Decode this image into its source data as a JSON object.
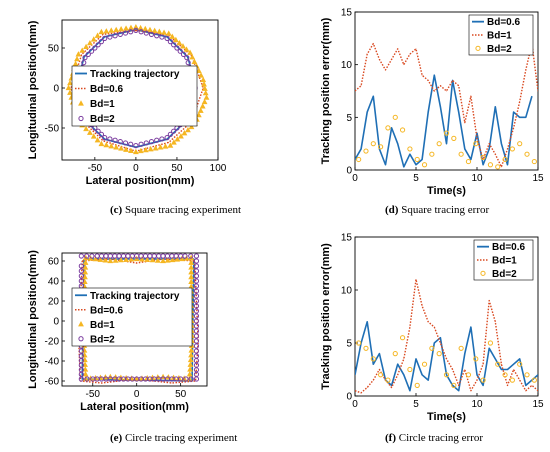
{
  "colors": {
    "blue": "#1f6fb5",
    "red": "#d9481f",
    "yellow": "#f5b622",
    "purple": "#7a3b9e"
  },
  "chart_data": [
    {
      "id": "c",
      "type": "line",
      "caption_tag": "(c)",
      "caption_text": "Square tracing experiment",
      "xlabel": "Lateral position(mm)",
      "ylabel": "Longitudinal position(mm)",
      "xlim": [
        -90,
        100
      ],
      "ylim": [
        -90,
        85
      ],
      "xticks": [
        -50,
        0,
        50,
        100
      ],
      "yticks": [
        -50,
        0,
        50
      ],
      "legend_position": "center",
      "series": [
        {
          "name": "Tracking trajectory",
          "style": "line",
          "color": "#1f6fb5",
          "x": [
            0,
            38,
            63,
            74,
            63,
            38,
            0,
            -38,
            -63,
            -73,
            -63,
            -38,
            0
          ],
          "y": [
            73,
            64,
            39,
            0,
            -39,
            -64,
            -74,
            -64,
            -39,
            0,
            39,
            64,
            73
          ]
        },
        {
          "name": "Bd=0.6",
          "style": "dotted",
          "color": "#d9481f",
          "x": [
            0,
            40,
            68,
            82,
            68,
            40,
            0,
            -40,
            -66,
            -79,
            -66,
            -40,
            0
          ],
          "y": [
            72,
            66,
            40,
            0,
            -42,
            -68,
            -79,
            -66,
            -40,
            0,
            42,
            67,
            72
          ]
        },
        {
          "name": "Bd=1",
          "style": "triangle",
          "color": "#f5b622",
          "x": [
            0,
            40,
            66,
            82,
            86,
            72,
            42,
            0,
            -42,
            -70,
            -82,
            -70,
            -42,
            0
          ],
          "y": [
            76,
            68,
            44,
            10,
            -12,
            -45,
            -72,
            -80,
            -70,
            -42,
            0,
            42,
            70,
            76
          ]
        },
        {
          "name": "Bd=2",
          "style": "circle",
          "color": "#7a3b9e",
          "x": [
            0,
            38,
            62,
            72,
            62,
            38,
            0,
            -38,
            -62,
            -71,
            -62,
            -38,
            0
          ],
          "y": [
            72,
            62,
            38,
            0,
            -38,
            -62,
            -72,
            -62,
            -38,
            0,
            38,
            62,
            72
          ]
        }
      ]
    },
    {
      "id": "d",
      "type": "line",
      "caption_tag": "(d)",
      "caption_text": "Square tracing error",
      "xlabel": "Time(s)",
      "ylabel": "Tracking position error(mm)",
      "xlim": [
        0,
        15
      ],
      "ylim": [
        0,
        15
      ],
      "xticks": [
        0,
        5,
        10,
        15
      ],
      "yticks": [
        0,
        5,
        10,
        15
      ],
      "legend_position": "top-right",
      "series": [
        {
          "name": "Bd=0.6",
          "style": "line",
          "color": "#1f6fb5",
          "x": [
            0,
            0.5,
            1,
            1.5,
            2,
            2.5,
            3,
            3.5,
            4,
            4.5,
            5,
            5.5,
            6,
            6.5,
            7,
            7.5,
            8,
            8.5,
            9,
            9.5,
            10,
            10.5,
            11,
            11.5,
            12,
            12.5,
            13,
            13.5,
            14,
            14.5
          ],
          "y": [
            1.0,
            2.0,
            5.5,
            7.0,
            2.0,
            0.5,
            4.0,
            2.5,
            0.3,
            1.5,
            0.5,
            1.0,
            5.5,
            9.0,
            6.0,
            2.5,
            8.5,
            5.5,
            2.0,
            1.0,
            3.5,
            0.5,
            2.0,
            6.0,
            2.5,
            0.5,
            5.5,
            5.0,
            5.0,
            7.0
          ]
        },
        {
          "name": "Bd=1",
          "style": "dotted",
          "color": "#d9481f",
          "x": [
            0,
            0.5,
            1,
            1.5,
            2,
            2.5,
            3,
            3.5,
            4,
            4.5,
            5,
            5.5,
            6,
            6.5,
            7,
            7.5,
            8,
            8.5,
            9,
            9.5,
            10,
            10.5,
            11,
            11.5,
            12,
            12.5,
            13,
            13.5,
            14,
            14.5,
            15
          ],
          "y": [
            7.5,
            8.0,
            11.0,
            12.0,
            10.5,
            9.5,
            10.5,
            11.5,
            10.0,
            11.0,
            11.5,
            9.0,
            8.5,
            7.5,
            8.0,
            7.5,
            8.5,
            8.0,
            4.5,
            7.0,
            3.0,
            1.0,
            2.5,
            1.5,
            0.3,
            2.0,
            4.0,
            6.5,
            9.5,
            12.0,
            7.5
          ]
        },
        {
          "name": "Bd=2",
          "style": "circle",
          "color": "#f5b622",
          "x": [
            0.3,
            0.9,
            1.5,
            2.1,
            2.7,
            3.3,
            3.9,
            4.5,
            5.1,
            5.7,
            6.3,
            6.9,
            7.5,
            8.1,
            8.7,
            9.3,
            9.9,
            10.5,
            11.1,
            11.7,
            12.3,
            12.9,
            13.5,
            14.1,
            14.7
          ],
          "y": [
            1.0,
            1.8,
            2.5,
            2.2,
            4.0,
            5.0,
            3.8,
            2.0,
            1.0,
            0.5,
            1.5,
            2.5,
            3.5,
            3.0,
            1.5,
            0.8,
            2.5,
            1.2,
            0.5,
            0.3,
            1.0,
            2.0,
            2.5,
            1.5,
            0.8
          ]
        }
      ]
    },
    {
      "id": "e",
      "type": "line",
      "caption_tag": "(e)",
      "caption_text": "Circle tracing experiment",
      "xlabel": "Lateral position(mm)",
      "ylabel": "Longitudinal position(mm)",
      "xlim": [
        -85,
        80
      ],
      "ylim": [
        -65,
        68
      ],
      "xticks": [
        -50,
        0,
        50
      ],
      "yticks": [
        -60,
        -40,
        -20,
        0,
        20,
        40,
        60
      ],
      "legend_position": "center",
      "series": [
        {
          "name": "Tracking trajectory",
          "style": "line",
          "color": "#1f6fb5",
          "x": [
            -60,
            65,
            63,
            -62,
            -60
          ],
          "y": [
            62,
            62,
            -60,
            -58,
            62
          ]
        },
        {
          "name": "Bd=0.6",
          "style": "dotted",
          "color": "#d9481f",
          "x": [
            -62,
            -30,
            0,
            30,
            66,
            68,
            70,
            67,
            40,
            0,
            -40,
            -64,
            -66,
            -64,
            -62
          ],
          "y": [
            60,
            62,
            58,
            62,
            60,
            20,
            -20,
            -60,
            -62,
            -58,
            -62,
            -60,
            -20,
            20,
            60
          ]
        },
        {
          "name": "Bd=1",
          "style": "triangle",
          "color": "#f5b622",
          "x": [
            -58,
            -30,
            0,
            30,
            62,
            62,
            63,
            60,
            30,
            0,
            -30,
            -58,
            -60,
            -60,
            -58
          ],
          "y": [
            63,
            60,
            62,
            60,
            63,
            20,
            -20,
            -58,
            -56,
            -58,
            -56,
            -58,
            -20,
            20,
            63
          ]
        },
        {
          "name": "Bd=2",
          "style": "circle",
          "color": "#7a3b9e",
          "x": [
            -63,
            -45,
            -25,
            -5,
            15,
            35,
            55,
            68,
            68,
            68,
            68,
            68,
            68,
            50,
            30,
            10,
            -10,
            -30,
            -50,
            -63,
            -63,
            -63,
            -63,
            -63,
            -63
          ],
          "y": [
            65,
            65,
            65,
            65,
            65,
            65,
            65,
            65,
            40,
            15,
            -10,
            -35,
            -58,
            -58,
            -58,
            -58,
            -58,
            -58,
            -58,
            -58,
            -35,
            -10,
            15,
            40,
            60
          ]
        }
      ]
    },
    {
      "id": "f",
      "type": "line",
      "caption_tag": "(f)",
      "caption_text": "Circle tracing error",
      "xlabel": "Time(s)",
      "ylabel": "Tracking position error(mm)",
      "xlim": [
        0,
        15
      ],
      "ylim": [
        0,
        15
      ],
      "xticks": [
        0,
        5,
        10,
        15
      ],
      "yticks": [
        0,
        5,
        10,
        15
      ],
      "legend_position": "top-right",
      "series": [
        {
          "name": "Bd=0.6",
          "style": "line",
          "color": "#1f6fb5",
          "x": [
            0,
            0.5,
            1,
            1.5,
            2,
            2.5,
            3,
            3.5,
            4,
            4.5,
            5,
            5.5,
            6,
            6.5,
            7,
            7.5,
            8,
            8.5,
            9,
            9.5,
            10,
            10.5,
            11,
            11.5,
            12,
            12.5,
            13,
            13.5,
            14,
            14.5,
            15
          ],
          "y": [
            2.0,
            5.0,
            7.0,
            3.0,
            4.0,
            1.5,
            1.0,
            3.0,
            2.0,
            0.5,
            3.5,
            2.0,
            1.5,
            5.0,
            5.5,
            2.0,
            1.0,
            0.5,
            4.0,
            6.5,
            2.0,
            1.0,
            4.5,
            3.5,
            2.5,
            2.5,
            3.0,
            3.5,
            1.0,
            1.5,
            2.0
          ]
        },
        {
          "name": "Bd=1",
          "style": "dotted",
          "color": "#d9481f",
          "x": [
            0,
            0.5,
            1,
            1.5,
            2,
            2.5,
            3,
            3.5,
            4,
            4.5,
            5,
            5.5,
            6,
            6.5,
            7,
            7.5,
            8,
            8.5,
            9,
            9.5,
            10,
            10.5,
            11,
            11.5,
            12,
            12.5,
            13,
            13.5,
            14,
            14.5,
            15
          ],
          "y": [
            0.5,
            0.3,
            0.8,
            1.5,
            2.5,
            1.5,
            0.8,
            2.0,
            3.5,
            6.5,
            11.0,
            8.5,
            7.0,
            6.5,
            5.0,
            3.5,
            2.5,
            1.0,
            2.5,
            0.5,
            1.5,
            3.0,
            9.0,
            7.0,
            3.0,
            1.0,
            2.5,
            1.5,
            0.5,
            1.0,
            0.5
          ]
        },
        {
          "name": "Bd=2",
          "style": "circle",
          "color": "#f5b622",
          "x": [
            0.3,
            0.9,
            1.5,
            2.1,
            2.7,
            3.3,
            3.9,
            4.5,
            5.1,
            5.7,
            6.3,
            6.9,
            7.5,
            8.1,
            8.7,
            9.3,
            9.9,
            10.5,
            11.1,
            11.7,
            12.3,
            12.9,
            13.5,
            14.1,
            14.7
          ],
          "y": [
            5.0,
            4.5,
            3.5,
            2.0,
            1.5,
            4.0,
            5.5,
            2.5,
            1.0,
            3.0,
            4.5,
            4.0,
            2.0,
            1.0,
            4.5,
            2.0,
            3.5,
            1.5,
            5.0,
            3.0,
            2.0,
            1.5,
            3.0,
            2.0,
            1.5
          ]
        }
      ]
    }
  ]
}
